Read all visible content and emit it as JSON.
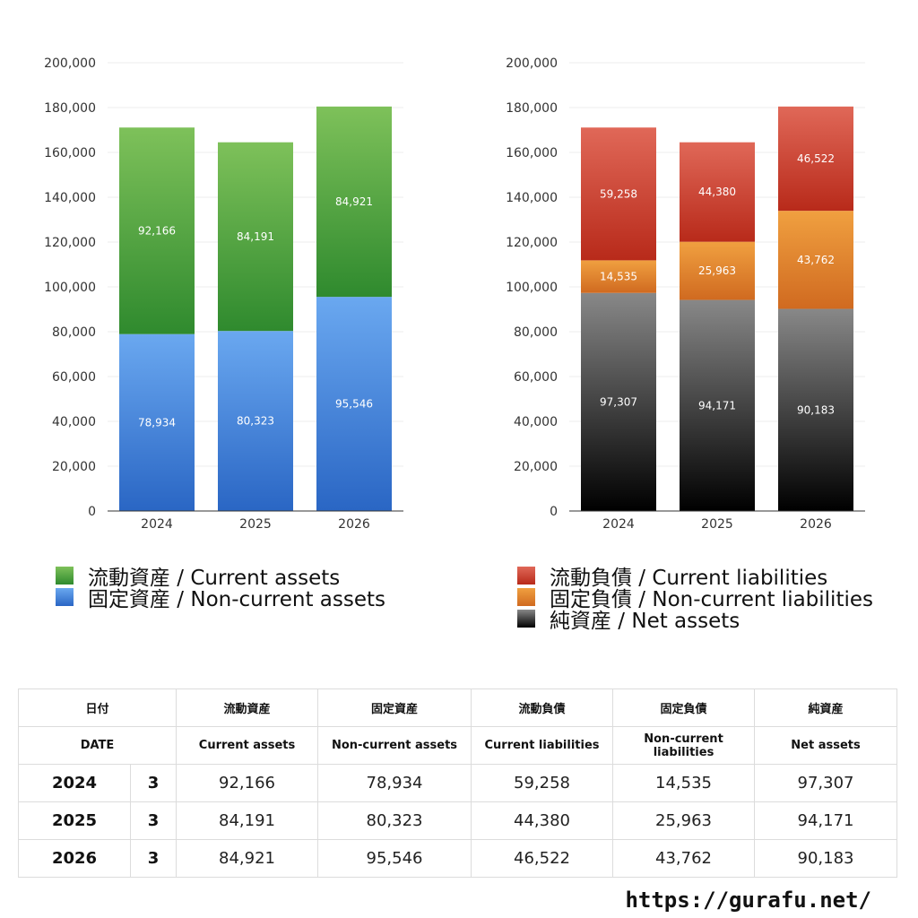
{
  "chart_data": [
    {
      "type": "bar",
      "stacked": true,
      "categories": [
        "2024",
        "2025",
        "2026"
      ],
      "ylim": [
        0,
        200000
      ],
      "yticks": [
        "0",
        "20,000",
        "40,000",
        "60,000",
        "80,000",
        "100,000",
        "120,000",
        "140,000",
        "160,000",
        "180,000",
        "200,000"
      ],
      "ytick_values": [
        0,
        20000,
        40000,
        60000,
        80000,
        100000,
        120000,
        140000,
        160000,
        180000,
        200000
      ],
      "grid": true,
      "legend_position": "bottom",
      "series": [
        {
          "name": "固定資産 / Non-current assets",
          "values": [
            78934,
            80323,
            95546
          ],
          "labels": [
            "78,934",
            "80,323",
            "95,546"
          ],
          "color_top": "#6aa8f0",
          "color_bottom": "#2a66c4"
        },
        {
          "name": "流動資産 / Current assets",
          "values": [
            92166,
            84191,
            84921
          ],
          "labels": [
            "92,166",
            "84,191",
            "84,921"
          ],
          "color_top": "#7ec15a",
          "color_bottom": "#2f8a2e"
        }
      ],
      "legend": [
        {
          "label": "流動資産 / Current assets",
          "color": "#4aa03c"
        },
        {
          "label": "固定資産 / Non-current assets",
          "color": "#4a86dc"
        }
      ]
    },
    {
      "type": "bar",
      "stacked": true,
      "categories": [
        "2024",
        "2025",
        "2026"
      ],
      "ylim": [
        0,
        200000
      ],
      "yticks": [
        "0",
        "20,000",
        "40,000",
        "60,000",
        "80,000",
        "100,000",
        "120,000",
        "140,000",
        "160,000",
        "180,000",
        "200,000"
      ],
      "ytick_values": [
        0,
        20000,
        40000,
        60000,
        80000,
        100000,
        120000,
        140000,
        160000,
        180000,
        200000
      ],
      "grid": true,
      "legend_position": "bottom",
      "series": [
        {
          "name": "純資産 / Net assets",
          "values": [
            97307,
            94171,
            90183
          ],
          "labels": [
            "97,307",
            "94,171",
            "90,183"
          ],
          "color_top": "#888888",
          "color_bottom": "#000000"
        },
        {
          "name": "固定負債 / Non-current liabilities",
          "values": [
            14535,
            25963,
            43762
          ],
          "labels": [
            "14,535",
            "25,963",
            "43,762"
          ],
          "color_top": "#f0a040",
          "color_bottom": "#d06a20"
        },
        {
          "name": "流動負債 / Current liabilities",
          "values": [
            59258,
            44380,
            46522
          ],
          "labels": [
            "59,258",
            "44,380",
            "46,522"
          ],
          "color_top": "#e06858",
          "color_bottom": "#b82a1a"
        }
      ],
      "legend": [
        {
          "label": "流動負債 / Current liabilities",
          "color": "#d04030"
        },
        {
          "label": "固定負債 / Non-current liabilities",
          "color": "#e88a30"
        },
        {
          "label": "純資産 / Net assets",
          "color": "#222222"
        }
      ]
    }
  ],
  "table": {
    "header_jp": [
      "日付",
      "流動資産",
      "固定資産",
      "流動負債",
      "固定負債",
      "純資産"
    ],
    "header_en": [
      "DATE",
      "Current assets",
      "Non-current assets",
      "Current liabilities",
      "Non-current liabilities",
      "Net assets"
    ],
    "rows": [
      {
        "year": "2024",
        "month": "3",
        "values": [
          "92,166",
          "78,934",
          "59,258",
          "14,535",
          "97,307"
        ]
      },
      {
        "year": "2025",
        "month": "3",
        "values": [
          "84,191",
          "80,323",
          "44,380",
          "25,963",
          "94,171"
        ]
      },
      {
        "year": "2026",
        "month": "3",
        "values": [
          "84,921",
          "95,546",
          "46,522",
          "43,762",
          "90,183"
        ]
      }
    ]
  },
  "footer": {
    "url": "https://gurafu.net/"
  }
}
